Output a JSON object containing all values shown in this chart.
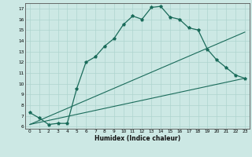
{
  "xlabel": "Humidex (Indice chaleur)",
  "ylabel": "",
  "bg_color": "#cce8e4",
  "grid_color": "#aed4cf",
  "line_color": "#1a6b5a",
  "xlim": [
    -0.5,
    23.5
  ],
  "ylim": [
    5.8,
    17.5
  ],
  "xticks": [
    0,
    1,
    2,
    3,
    4,
    5,
    6,
    7,
    8,
    9,
    10,
    11,
    12,
    13,
    14,
    15,
    16,
    17,
    18,
    19,
    20,
    21,
    22,
    23
  ],
  "yticks": [
    6,
    7,
    8,
    9,
    10,
    11,
    12,
    13,
    14,
    15,
    16,
    17
  ],
  "main_x": [
    0,
    1,
    2,
    3,
    4,
    5,
    6,
    7,
    8,
    9,
    10,
    11,
    12,
    13,
    14,
    15,
    16,
    17,
    18,
    19,
    20,
    21,
    22,
    23
  ],
  "main_y": [
    7.3,
    6.8,
    6.2,
    6.3,
    6.3,
    9.5,
    12.0,
    12.5,
    13.5,
    14.2,
    15.5,
    16.3,
    16.0,
    17.1,
    17.2,
    16.2,
    16.0,
    15.2,
    15.0,
    13.2,
    12.2,
    11.5,
    10.8,
    10.5
  ],
  "line2_x": [
    0,
    23
  ],
  "line2_y": [
    6.2,
    14.8
  ],
  "line3_x": [
    0,
    23
  ],
  "line3_y": [
    6.2,
    10.5
  ]
}
